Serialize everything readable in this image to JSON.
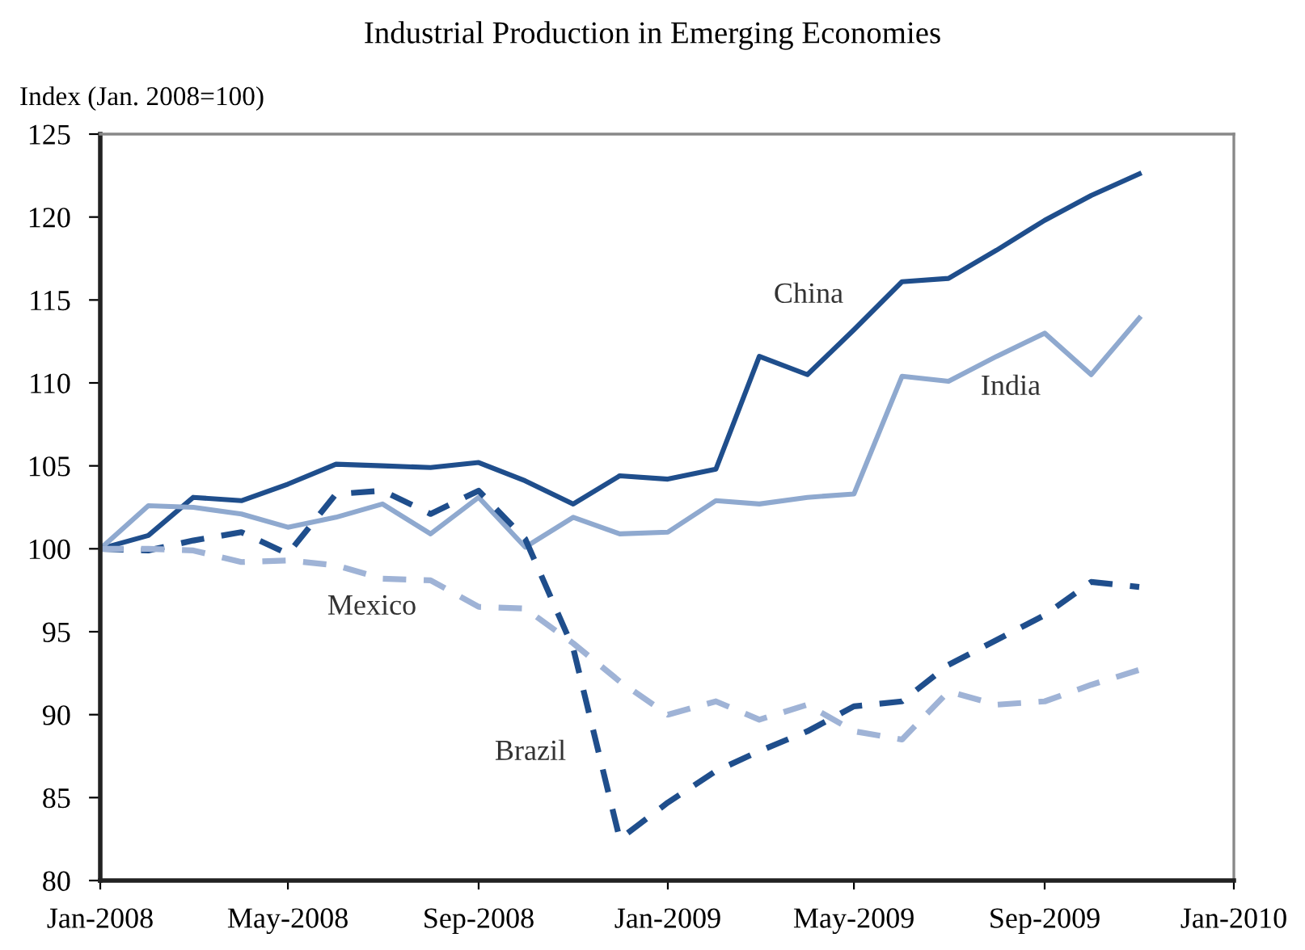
{
  "chart_data": {
    "type": "line",
    "title": "Industrial Production in Emerging Economies",
    "ylabel": "Index (Jan. 2008=100)",
    "x": [
      "2008-01",
      "2008-02",
      "2008-03",
      "2008-04",
      "2008-05",
      "2008-06",
      "2008-07",
      "2008-08",
      "2008-09",
      "2008-10",
      "2008-11",
      "2008-12",
      "2009-01",
      "2009-02",
      "2009-03",
      "2009-04",
      "2009-05",
      "2009-06",
      "2009-07",
      "2009-08",
      "2009-09",
      "2009-10",
      "2009-11"
    ],
    "series": [
      {
        "name": "China",
        "color": "#1f4e8c",
        "line_style": "solid",
        "values": [
          100,
          100.8,
          103.1,
          102.9,
          103.9,
          105.1,
          105.0,
          104.9,
          105.2,
          104.1,
          102.7,
          104.4,
          104.2,
          104.8,
          111.6,
          110.5,
          113.2,
          116.1,
          116.3,
          118.0,
          119.8,
          121.3,
          122.6
        ]
      },
      {
        "name": "India",
        "color": "#8fa9cf",
        "line_style": "solid",
        "values": [
          100,
          102.6,
          102.5,
          102.1,
          101.3,
          101.9,
          102.7,
          100.9,
          103.1,
          100.1,
          101.9,
          100.9,
          101.0,
          102.9,
          102.7,
          103.1,
          103.3,
          110.4,
          110.1,
          111.6,
          113.0,
          110.5,
          113.9
        ]
      },
      {
        "name": "Brazil",
        "color": "#1f4e8c",
        "line_style": "dashed",
        "values": [
          100,
          99.9,
          100.5,
          101.0,
          99.7,
          103.3,
          103.5,
          102.1,
          103.5,
          100.6,
          94.0,
          82.5,
          84.7,
          86.6,
          87.8,
          89.0,
          90.5,
          90.8,
          93.0,
          94.5,
          96.0,
          98.0,
          97.7
        ]
      },
      {
        "name": "Mexico",
        "color": "#9fb3d6",
        "line_style": "dashed",
        "values": [
          100,
          100.0,
          99.9,
          99.2,
          99.3,
          99.0,
          98.2,
          98.1,
          96.5,
          96.4,
          94.3,
          92.0,
          90.0,
          90.8,
          89.7,
          90.6,
          89.0,
          88.5,
          91.4,
          90.6,
          90.8,
          91.8,
          92.7
        ]
      }
    ],
    "xlim": [
      "2008-01",
      "2010-01"
    ],
    "xticks": [
      {
        "value": "2008-01",
        "label": "Jan-2008"
      },
      {
        "value": "2008-05",
        "label": "May-2008"
      },
      {
        "value": "2008-09",
        "label": "Sep-2008"
      },
      {
        "value": "2009-01",
        "label": "Jan-2009"
      },
      {
        "value": "2009-05",
        "label": "May-2009"
      },
      {
        "value": "2009-09",
        "label": "Sep-2009"
      },
      {
        "value": "2010-01",
        "label": "Jan-2010"
      }
    ],
    "ylim": [
      80,
      125
    ],
    "yticks": [
      80,
      85,
      90,
      95,
      100,
      105,
      110,
      115,
      120,
      125
    ],
    "grid": false,
    "legend": false
  }
}
